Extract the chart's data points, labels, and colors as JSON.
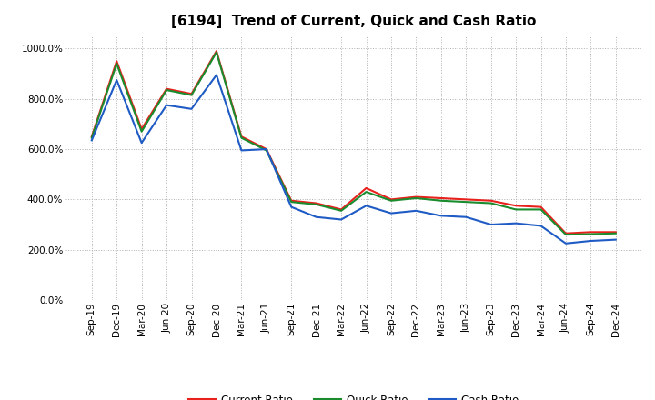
{
  "title": "[6194]  Trend of Current, Quick and Cash Ratio",
  "x_labels": [
    "Sep-19",
    "Dec-19",
    "Mar-20",
    "Jun-20",
    "Sep-20",
    "Dec-20",
    "Mar-21",
    "Jun-21",
    "Sep-21",
    "Dec-21",
    "Mar-22",
    "Jun-22",
    "Sep-22",
    "Dec-22",
    "Mar-23",
    "Jun-23",
    "Sep-23",
    "Dec-23",
    "Mar-24",
    "Jun-24",
    "Sep-24",
    "Dec-24"
  ],
  "current_ratio": [
    650,
    950,
    680,
    840,
    820,
    990,
    650,
    600,
    395,
    385,
    360,
    445,
    400,
    410,
    405,
    400,
    395,
    375,
    370,
    265,
    270,
    270
  ],
  "quick_ratio": [
    645,
    940,
    670,
    835,
    815,
    985,
    645,
    595,
    390,
    380,
    355,
    430,
    395,
    405,
    395,
    390,
    385,
    360,
    360,
    260,
    262,
    265
  ],
  "cash_ratio": [
    635,
    875,
    625,
    775,
    760,
    895,
    595,
    600,
    370,
    330,
    320,
    375,
    345,
    355,
    335,
    330,
    300,
    305,
    295,
    225,
    235,
    240
  ],
  "current_color": "#e8211d",
  "quick_color": "#1a8c2e",
  "cash_color": "#1f5bc4",
  "bg_color": "#ffffff",
  "plot_bg_color": "#ffffff",
  "grid_color": "#b0b0b0",
  "ylim": [
    0,
    1050
  ],
  "yticks": [
    0,
    200,
    400,
    600,
    800,
    1000
  ],
  "legend_labels": [
    "Current Ratio",
    "Quick Ratio",
    "Cash Ratio"
  ],
  "title_fontsize": 11,
  "tick_fontsize": 7.5,
  "legend_fontsize": 8.5,
  "linewidth": 1.5
}
